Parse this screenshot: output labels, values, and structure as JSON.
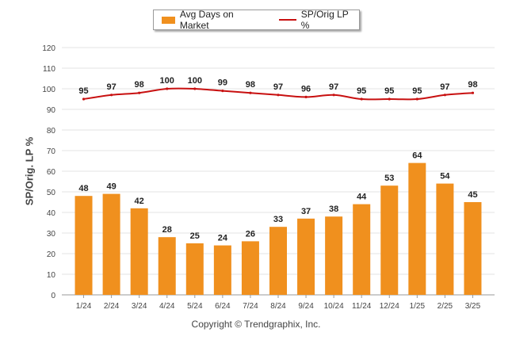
{
  "chart_data": {
    "type": "bar",
    "categories": [
      "1/24",
      "2/24",
      "3/24",
      "4/24",
      "5/24",
      "6/24",
      "7/24",
      "8/24",
      "9/24",
      "10/24",
      "11/24",
      "12/24",
      "1/25",
      "2/25",
      "3/25"
    ],
    "series": [
      {
        "name": "Avg Days on Market",
        "type": "bar",
        "color": "#f0901e",
        "values": [
          48,
          49,
          42,
          28,
          25,
          24,
          26,
          33,
          37,
          38,
          44,
          53,
          64,
          54,
          45
        ]
      },
      {
        "name": "SP/Orig LP %",
        "type": "line",
        "color": "#c81010",
        "values": [
          95,
          97,
          98,
          100,
          100,
          99,
          98,
          97,
          96,
          97,
          95,
          95,
          95,
          97,
          98
        ]
      }
    ],
    "ylabel": "SP/Orig. LP %",
    "ylim": [
      0,
      120
    ],
    "yticks": [
      0,
      10,
      20,
      30,
      40,
      50,
      60,
      70,
      80,
      90,
      100,
      110,
      120
    ],
    "grid": true,
    "legend_position": "top-center"
  },
  "legend": {
    "bar_label": "Avg Days on Market",
    "line_label": "SP/Orig LP %"
  },
  "footer": {
    "copyright": "Copyright © Trendgraphix, Inc."
  }
}
